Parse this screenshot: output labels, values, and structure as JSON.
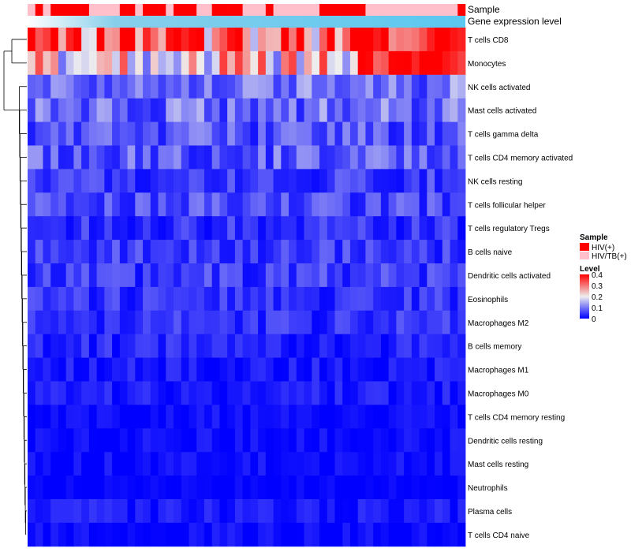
{
  "chart_data": {
    "type": "heatmap",
    "annotation_rows": [
      "Sample",
      "Gene expression level"
    ],
    "rows": [
      "T cells CD8",
      "Monocytes",
      "NK cells activated",
      "Mast cells activated",
      "T cells gamma delta",
      "T cells CD4 memory activated",
      "NK cells resting",
      "T cells follicular helper",
      "T cells regulatory  Tregs",
      "B cells naive",
      "Dendritic cells activated",
      "Eosinophils",
      "Macrophages M2",
      "B cells memory",
      "Macrophages M1",
      "Macrophages M0",
      "T cells CD4 memory resting",
      "Dendritic cells resting",
      "Mast cells resting",
      "Neutrophils",
      "Plasma cells",
      "T cells CD4 naive"
    ],
    "sample_groups": "LHLHHHHHLLLLHHLHHHLHHHLLHHHHLLLHLLLLLLHHHHHHLLLLLLLLLLLLH",
    "expression_gradient": [
      "#87CEEB",
      "#5BC8F0"
    ],
    "value_range": [
      0,
      0.4
    ],
    "row_means": [
      0.36,
      0.22,
      0.1,
      0.09,
      0.07,
      0.08,
      0.05,
      0.06,
      0.04,
      0.05,
      0.05,
      0.04,
      0.04,
      0.03,
      0.02,
      0.02,
      0.01,
      0.01,
      0.01,
      0.0,
      0.02,
      0.01
    ],
    "legend": {
      "sample_title": "Sample",
      "sample_entries": [
        {
          "label": "HIV(+)",
          "color": "#FF0000"
        },
        {
          "label": "HIV/TB(+)",
          "color": "#FFC0CB"
        }
      ],
      "level_title": "Level",
      "level_ticks": [
        "0.4",
        "0.3",
        "0.2",
        "0.1",
        "0"
      ],
      "level_tick_values": [
        0.4,
        0.3,
        0.2,
        0.1,
        0
      ],
      "colors": {
        "low": "#0000FF",
        "mid": "#EEEEEE",
        "high": "#FF0000"
      }
    }
  }
}
